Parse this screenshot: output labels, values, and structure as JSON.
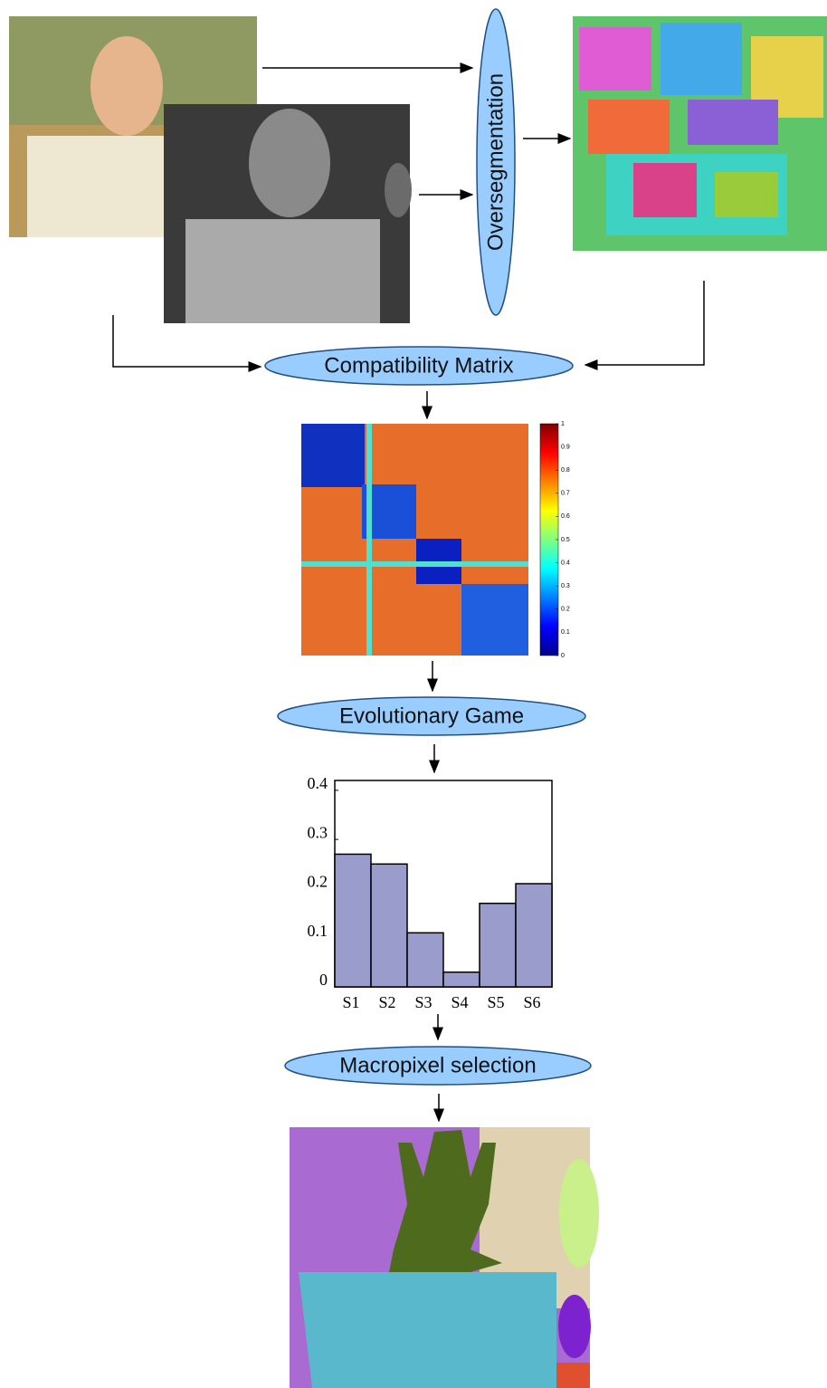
{
  "nodes": [
    {
      "label": "Oversegmentation"
    },
    {
      "label": "Compatibility Matrix"
    },
    {
      "label": "Evolutionary Game"
    },
    {
      "label": "Macropixel selection"
    }
  ],
  "colorbar": {
    "lim": [
      0,
      1
    ],
    "ticks": [
      0,
      0.1,
      0.2,
      0.3,
      0.4,
      0.5,
      0.6,
      0.7,
      0.8,
      0.9,
      1
    ]
  },
  "chart_data": {
    "type": "bar",
    "categories": [
      "S1",
      "S2",
      "S3",
      "S4",
      "S5",
      "S6"
    ],
    "values": [
      0.27,
      0.25,
      0.11,
      0.03,
      0.17,
      0.21
    ],
    "color": "#9a9ccc",
    "ylim": [
      0,
      0.42
    ],
    "yticks": [
      0,
      0.1,
      0.2,
      0.3,
      0.4
    ]
  }
}
